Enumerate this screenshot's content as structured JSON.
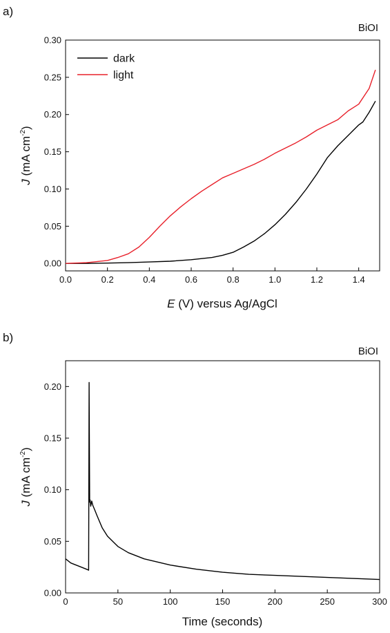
{
  "colors": {
    "dark": "#000000",
    "light": "#e8202a",
    "axes": "#000000"
  },
  "chart_data": [
    {
      "type": "line",
      "panel_label": "a)",
      "annotation": "BiOI",
      "ylabel": {
        "italic": "J",
        "text": " (mA cm",
        "sup": "-2",
        "close": ")"
      },
      "xlabel": {
        "italic": "E",
        "text": " (V) versus Ag/AgCl"
      },
      "xlim": [
        0,
        1.5
      ],
      "ylim": [
        -0.01,
        0.3
      ],
      "xticks": [
        "0.0",
        "0.2",
        "0.4",
        "0.6",
        "0.8",
        "1.0",
        "1.2",
        "1.4"
      ],
      "yticks": [
        "0.00",
        "0.05",
        "0.10",
        "0.15",
        "0.20",
        "0.25",
        "0.30"
      ],
      "legend_position": "top-left",
      "series": [
        {
          "name": "dark",
          "color_key": "dark",
          "x": [
            0.0,
            0.1,
            0.2,
            0.3,
            0.4,
            0.5,
            0.6,
            0.7,
            0.75,
            0.8,
            0.85,
            0.9,
            0.95,
            1.0,
            1.05,
            1.1,
            1.15,
            1.2,
            1.25,
            1.3,
            1.35,
            1.4,
            1.42,
            1.45,
            1.48
          ],
          "y": [
            0.0,
            0.0,
            0.0005,
            0.001,
            0.002,
            0.003,
            0.005,
            0.008,
            0.011,
            0.015,
            0.022,
            0.03,
            0.04,
            0.052,
            0.066,
            0.082,
            0.1,
            0.12,
            0.142,
            0.158,
            0.172,
            0.186,
            0.19,
            0.203,
            0.218
          ]
        },
        {
          "name": "light",
          "color_key": "light",
          "x": [
            0.0,
            0.1,
            0.2,
            0.25,
            0.3,
            0.35,
            0.4,
            0.45,
            0.5,
            0.55,
            0.6,
            0.65,
            0.7,
            0.75,
            0.8,
            0.85,
            0.9,
            0.95,
            1.0,
            1.05,
            1.1,
            1.15,
            1.2,
            1.25,
            1.3,
            1.35,
            1.4,
            1.45,
            1.48
          ],
          "y": [
            0.0,
            0.001,
            0.004,
            0.008,
            0.013,
            0.022,
            0.035,
            0.05,
            0.064,
            0.076,
            0.087,
            0.097,
            0.106,
            0.115,
            0.121,
            0.127,
            0.133,
            0.14,
            0.148,
            0.155,
            0.162,
            0.17,
            0.179,
            0.186,
            0.193,
            0.205,
            0.214,
            0.235,
            0.26
          ]
        }
      ]
    },
    {
      "type": "line",
      "panel_label": "b)",
      "annotation": "BiOI",
      "ylabel": {
        "italic": "J",
        "text": " (mA cm",
        "sup": "-2",
        "close": ")"
      },
      "xlabel": {
        "italic": "",
        "text": "Time (seconds)"
      },
      "xlim": [
        0,
        300
      ],
      "ylim": [
        0,
        0.225
      ],
      "xticks": [
        "0",
        "50",
        "100",
        "150",
        "200",
        "250",
        "300"
      ],
      "yticks": [
        "0.00",
        "0.05",
        "0.10",
        "0.15",
        "0.20"
      ],
      "series": [
        {
          "color_key": "dark",
          "x": [
            0,
            5,
            10,
            15,
            20,
            22,
            22.5,
            23,
            23.5,
            24,
            25,
            26,
            28,
            30,
            35,
            40,
            50,
            60,
            75,
            100,
            125,
            150,
            175,
            200,
            225,
            250,
            275,
            300
          ],
          "y": [
            0.033,
            0.029,
            0.027,
            0.025,
            0.023,
            0.022,
            0.204,
            0.088,
            0.09,
            0.084,
            0.089,
            0.085,
            0.08,
            0.075,
            0.063,
            0.055,
            0.045,
            0.039,
            0.033,
            0.027,
            0.023,
            0.02,
            0.018,
            0.017,
            0.016,
            0.015,
            0.014,
            0.013
          ]
        }
      ]
    }
  ]
}
